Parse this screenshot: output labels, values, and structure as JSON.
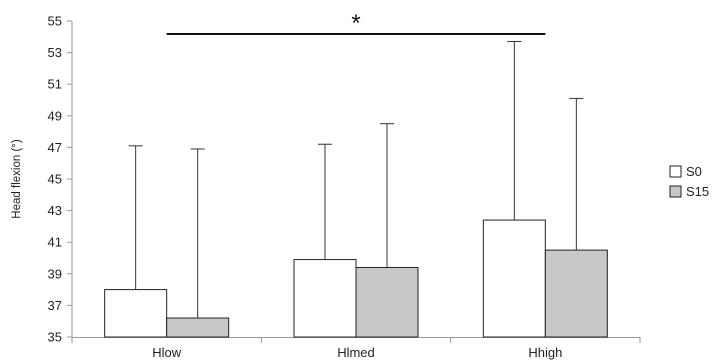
{
  "chart_data": {
    "type": "bar",
    "title": "",
    "xlabel": "",
    "ylabel": "Head flexion (°)",
    "ylim": [
      35,
      55
    ],
    "yticks": [
      35,
      37,
      39,
      41,
      43,
      45,
      47,
      49,
      51,
      53,
      55
    ],
    "categories": [
      "Hlow",
      "Hlmed",
      "Hhigh"
    ],
    "series": [
      {
        "name": "S0",
        "values": [
          38.0,
          39.9,
          42.4
        ],
        "error_upper": [
          47.1,
          47.2,
          53.7
        ],
        "color": "#ffffff"
      },
      {
        "name": "S15",
        "values": [
          36.2,
          39.4,
          40.5
        ],
        "error_upper": [
          46.9,
          48.5,
          50.1
        ],
        "color": "#c8c8c8"
      }
    ],
    "legend_position": "right",
    "grid": false,
    "annotation": {
      "text": "*",
      "spans": [
        "Hlow",
        "Hhigh"
      ]
    }
  }
}
